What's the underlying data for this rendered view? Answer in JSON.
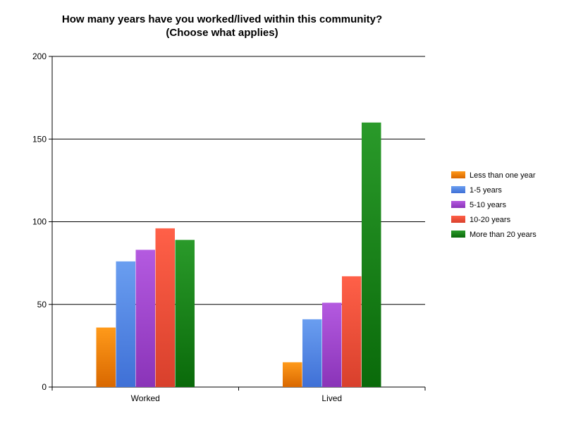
{
  "chart_data": {
    "type": "bar",
    "title_line1": "How many years have you worked/lived within this community?",
    "title_line2": "(Choose what applies)",
    "xlabel": "",
    "ylabel": "",
    "categories": [
      "Worked",
      "Lived"
    ],
    "ylim": [
      0,
      200
    ],
    "yticks": [
      0,
      50,
      100,
      150,
      200
    ],
    "grid": true,
    "legend_position": "right",
    "series": [
      {
        "name": "Less than one year",
        "values": [
          36,
          15
        ],
        "color_light": "#ff9a1a",
        "color_dark": "#d96800"
      },
      {
        "name": "1-5 years",
        "values": [
          76,
          41
        ],
        "color_light": "#6a9ef0",
        "color_dark": "#3f70d6"
      },
      {
        "name": "5-10 years",
        "values": [
          83,
          51
        ],
        "color_light": "#b45ae0",
        "color_dark": "#8a34b8"
      },
      {
        "name": "10-20 years",
        "values": [
          96,
          67
        ],
        "color_light": "#ff6048",
        "color_dark": "#d8402c"
      },
      {
        "name": "More than 20 years",
        "values": [
          89,
          160
        ],
        "color_light": "#2a9a2a",
        "color_dark": "#0a6a0a"
      }
    ]
  }
}
